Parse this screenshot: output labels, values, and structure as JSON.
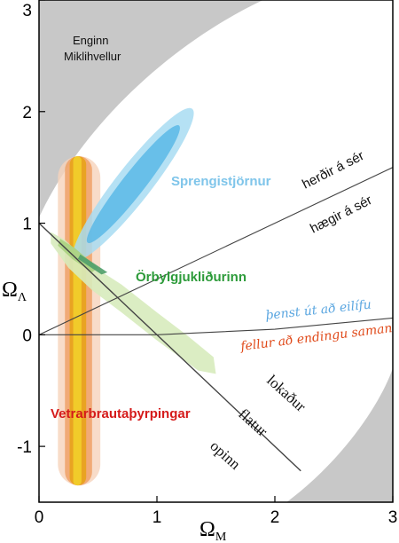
{
  "chart_data": {
    "type": "scatter",
    "xlabel": "Ω",
    "xlabel_sub": "M",
    "ylabel": "Ω",
    "ylabel_sub": "Λ",
    "xlim": [
      0,
      3
    ],
    "ylim": [
      -1.5,
      3
    ],
    "x_ticks": [
      "0",
      "1",
      "2",
      "3"
    ],
    "y_ticks": [
      "-1",
      "0",
      "1",
      "2",
      "3"
    ],
    "grid": false,
    "colors": {
      "excluded_region": "#c8c8c8",
      "supernovae_outer": "#a8dcf2",
      "supernovae_inner": "#5ab8e6",
      "cmb_outer": "#d7ebbd",
      "cmb_inner": "#a9d17f",
      "cmb_core": "#4f9f6a",
      "clusters_outer": "#f6d3bb",
      "clusters_mid": "#ef9a5a",
      "clusters_inner": "#e8a21a",
      "clusters_core": "#f2cf2b",
      "supernovae_label": "#7fc5ea",
      "cmb_label": "#2d9b3a",
      "clusters_label": "#d51a1a",
      "eternal_label": "#5aa6e0",
      "recollapse_label": "#e04a1a"
    },
    "regions": [
      {
        "name": "excluded_top_left",
        "label_line1": "Enginn",
        "label_line2": "Miklihvellur"
      },
      {
        "name": "excluded_bottom_right"
      }
    ],
    "probes": [
      {
        "name": "supernovae",
        "label": "Sprengistjörnur",
        "center": [
          0.8,
          1.35
        ],
        "angle_deg": 52,
        "outer_semi_axes": [
          1.35,
          0.25
        ],
        "inner_semi_axes": [
          1.05,
          0.16
        ]
      },
      {
        "name": "cmb",
        "label": "Örbylgjukliðurinn",
        "path_outer": [
          [
            0.1,
            0.92
          ],
          [
            0.22,
            0.85
          ],
          [
            0.45,
            0.62
          ],
          [
            0.7,
            0.45
          ],
          [
            1.0,
            0.2
          ],
          [
            1.25,
            0.0
          ],
          [
            1.48,
            -0.2
          ],
          [
            1.5,
            -0.35
          ],
          [
            1.35,
            -0.32
          ],
          [
            1.0,
            -0.05
          ],
          [
            0.7,
            0.2
          ],
          [
            0.45,
            0.4
          ],
          [
            0.25,
            0.6
          ],
          [
            0.1,
            0.82
          ]
        ],
        "path_inner": [
          [
            0.18,
            0.86
          ],
          [
            0.3,
            0.78
          ],
          [
            0.5,
            0.6
          ],
          [
            0.45,
            0.56
          ],
          [
            0.28,
            0.68
          ],
          [
            0.16,
            0.8
          ]
        ],
        "path_core": [
          [
            0.35,
            0.72
          ],
          [
            0.58,
            0.56
          ],
          [
            0.53,
            0.54
          ],
          [
            0.33,
            0.68
          ]
        ]
      },
      {
        "name": "galaxy_clusters",
        "label": "Vetrarbrautaþyrpingar",
        "x_bands_outer": [
          0.16,
          0.52
        ],
        "x_bands_mid": [
          0.22,
          0.45
        ],
        "x_bands_inner": [
          0.26,
          0.4
        ],
        "x_bands_core": [
          0.29,
          0.36
        ],
        "y_range": [
          -1.35,
          1.6
        ]
      }
    ],
    "lines": [
      {
        "name": "expands_forever_boundary",
        "label": "þenst út að eilífu",
        "points": [
          [
            0,
            0
          ],
          [
            1,
            0.0
          ],
          [
            2,
            0.05
          ],
          [
            3,
            0.15
          ]
        ]
      },
      {
        "name": "recollapse_boundary",
        "label": "fellur að endingu saman"
      },
      {
        "name": "accelerating_boundary",
        "label_upper": "herðir á sér",
        "label_lower": "hægir á sér",
        "points": [
          [
            0,
            0
          ],
          [
            3,
            1.5
          ]
        ]
      },
      {
        "name": "flat_universe",
        "label": "flatur",
        "points": [
          [
            0,
            1
          ],
          [
            2.22,
            -1.22
          ]
        ]
      },
      {
        "name": "closed_side",
        "label": "lokaður"
      },
      {
        "name": "open_side",
        "label": "opinn"
      }
    ]
  }
}
